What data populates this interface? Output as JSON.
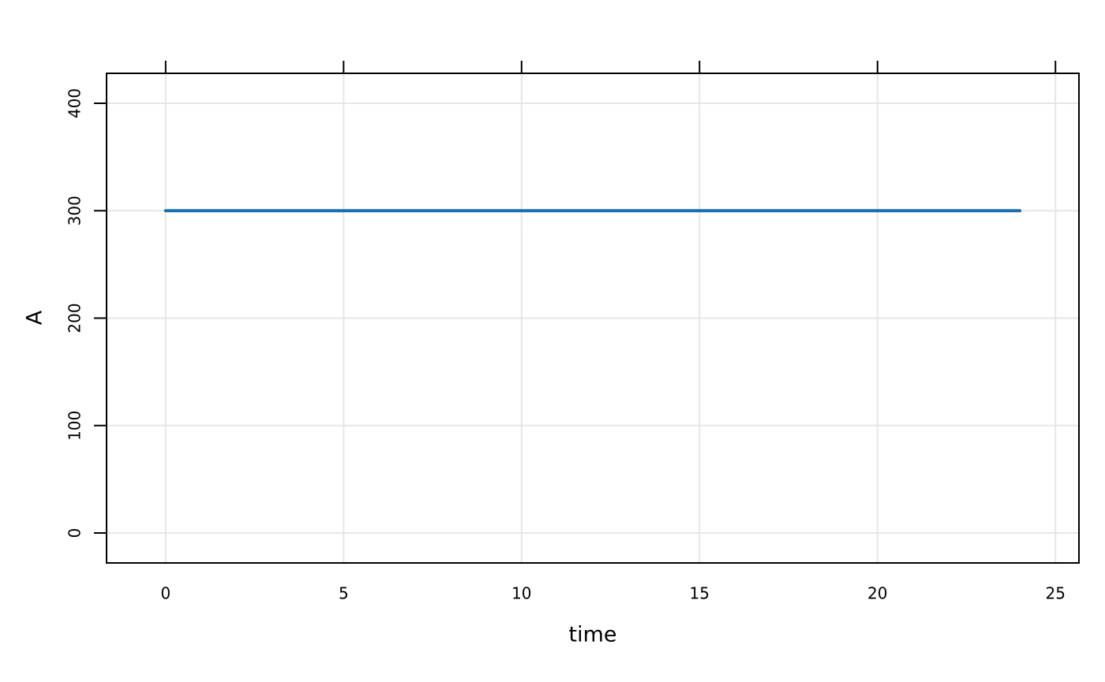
{
  "chart_data": {
    "type": "line",
    "x_label": "time",
    "y_label": "A",
    "x": [
      0,
      24
    ],
    "series": [
      {
        "name": "A",
        "color": "#1a6fb0",
        "values": [
          300,
          300
        ]
      }
    ],
    "xlim": [
      -1.66,
      25.66
    ],
    "ylim": [
      -27.9,
      427.9
    ],
    "xticks": [
      0,
      5,
      10,
      15,
      20,
      25
    ],
    "yticks": [
      0,
      100,
      200,
      300,
      400
    ],
    "grid": true
  }
}
